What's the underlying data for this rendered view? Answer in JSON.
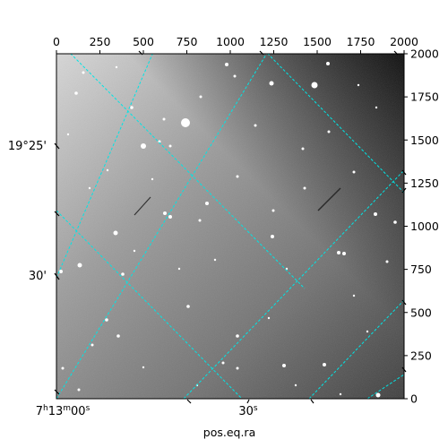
{
  "figure": {
    "xlabel": "pos.eq.ra",
    "top_ticks": [
      "0",
      "250",
      "500",
      "750",
      "1000",
      "1250",
      "1500",
      "1750",
      "2000"
    ],
    "right_ticks": [
      "0",
      "250",
      "500",
      "750",
      "1000",
      "1250",
      "1500",
      "1750",
      "2000"
    ],
    "dec_labels": [
      "19°25'",
      "30'"
    ],
    "ra_labels": {
      "first_main": "7",
      "first_h": "h",
      "first_min": "13",
      "first_m": "m",
      "first_sec": "00",
      "first_s": "s",
      "second_main": "30",
      "second_s": "s"
    },
    "colors": {
      "grid": "#00e5e5",
      "frame": "#000000"
    },
    "pixel_range": [
      0,
      2000
    ]
  }
}
